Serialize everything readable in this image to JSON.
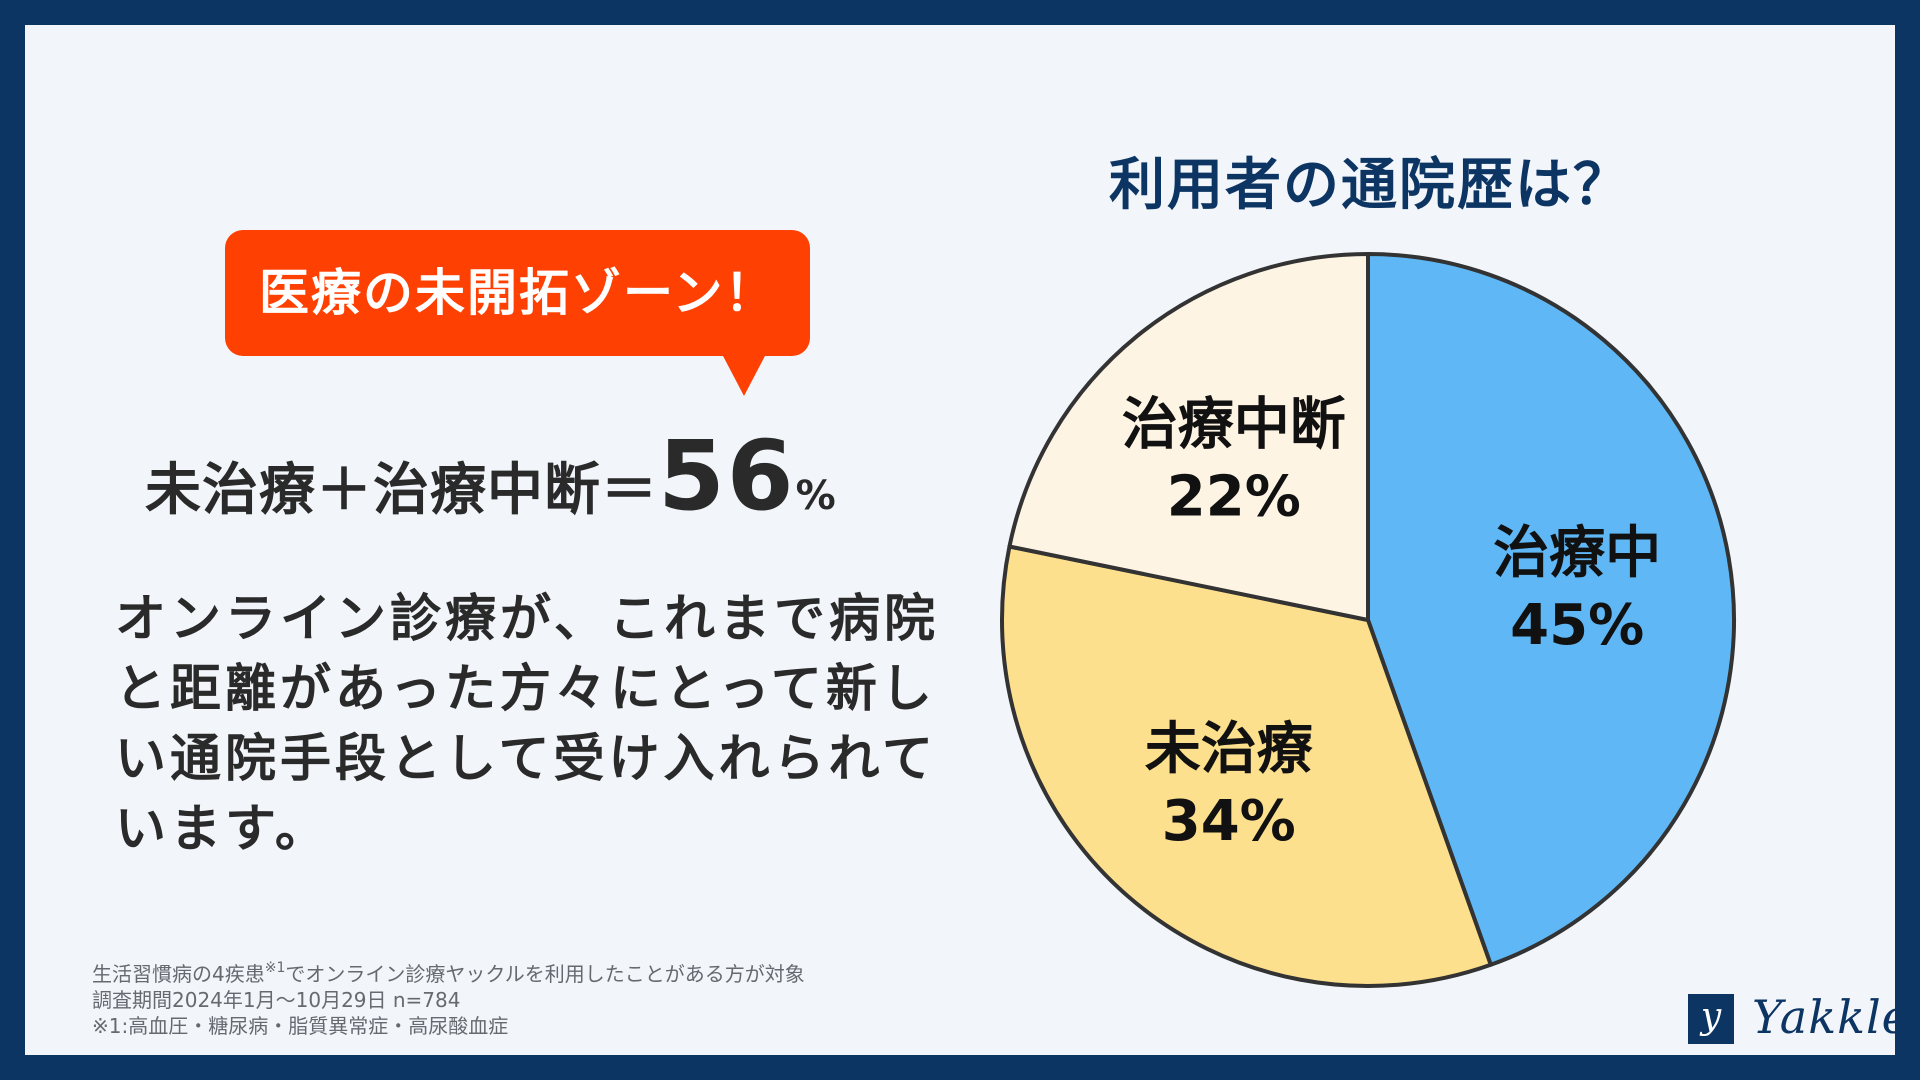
{
  "callout": {
    "text": "医療の未開拓ゾーン！"
  },
  "summary": {
    "label": "未治療＋治療中断＝",
    "value": "56",
    "unit": "%"
  },
  "body": {
    "text": "オンライン診療が、これまで病院と距離があった方々にとって新しい通院手段として受け入れられています。"
  },
  "footnote": {
    "line1_a": "生活習慣病の4疾患",
    "line1_sup": "※1",
    "line1_b": "でオンライン診療ヤックルを利用したことがある方が対象",
    "line2": "調査期間2024年1月〜10月29日 n=784",
    "line3": "※1:高血圧・糖尿病・脂質異常症・高尿酸血症"
  },
  "logo": {
    "mark": "y",
    "text": "Yakkle"
  },
  "colors": {
    "background": "#0d3563",
    "panel": "#f2f6fb",
    "accent": "#fe4102",
    "title": "#0d3563"
  },
  "chart_data": {
    "type": "pie",
    "title": "利用者の通院歴は？",
    "slices": [
      {
        "label": "治療中",
        "value": 45,
        "display": "45%",
        "color": "#5fb8f5"
      },
      {
        "label": "未治療",
        "value": 34,
        "display": "34%",
        "color": "#fde08d"
      },
      {
        "label": "治療中断",
        "value": 22,
        "display": "22%",
        "color": "#fdf4e4"
      }
    ],
    "start": "12 o'clock",
    "direction": "clockwise",
    "legend": "none"
  }
}
